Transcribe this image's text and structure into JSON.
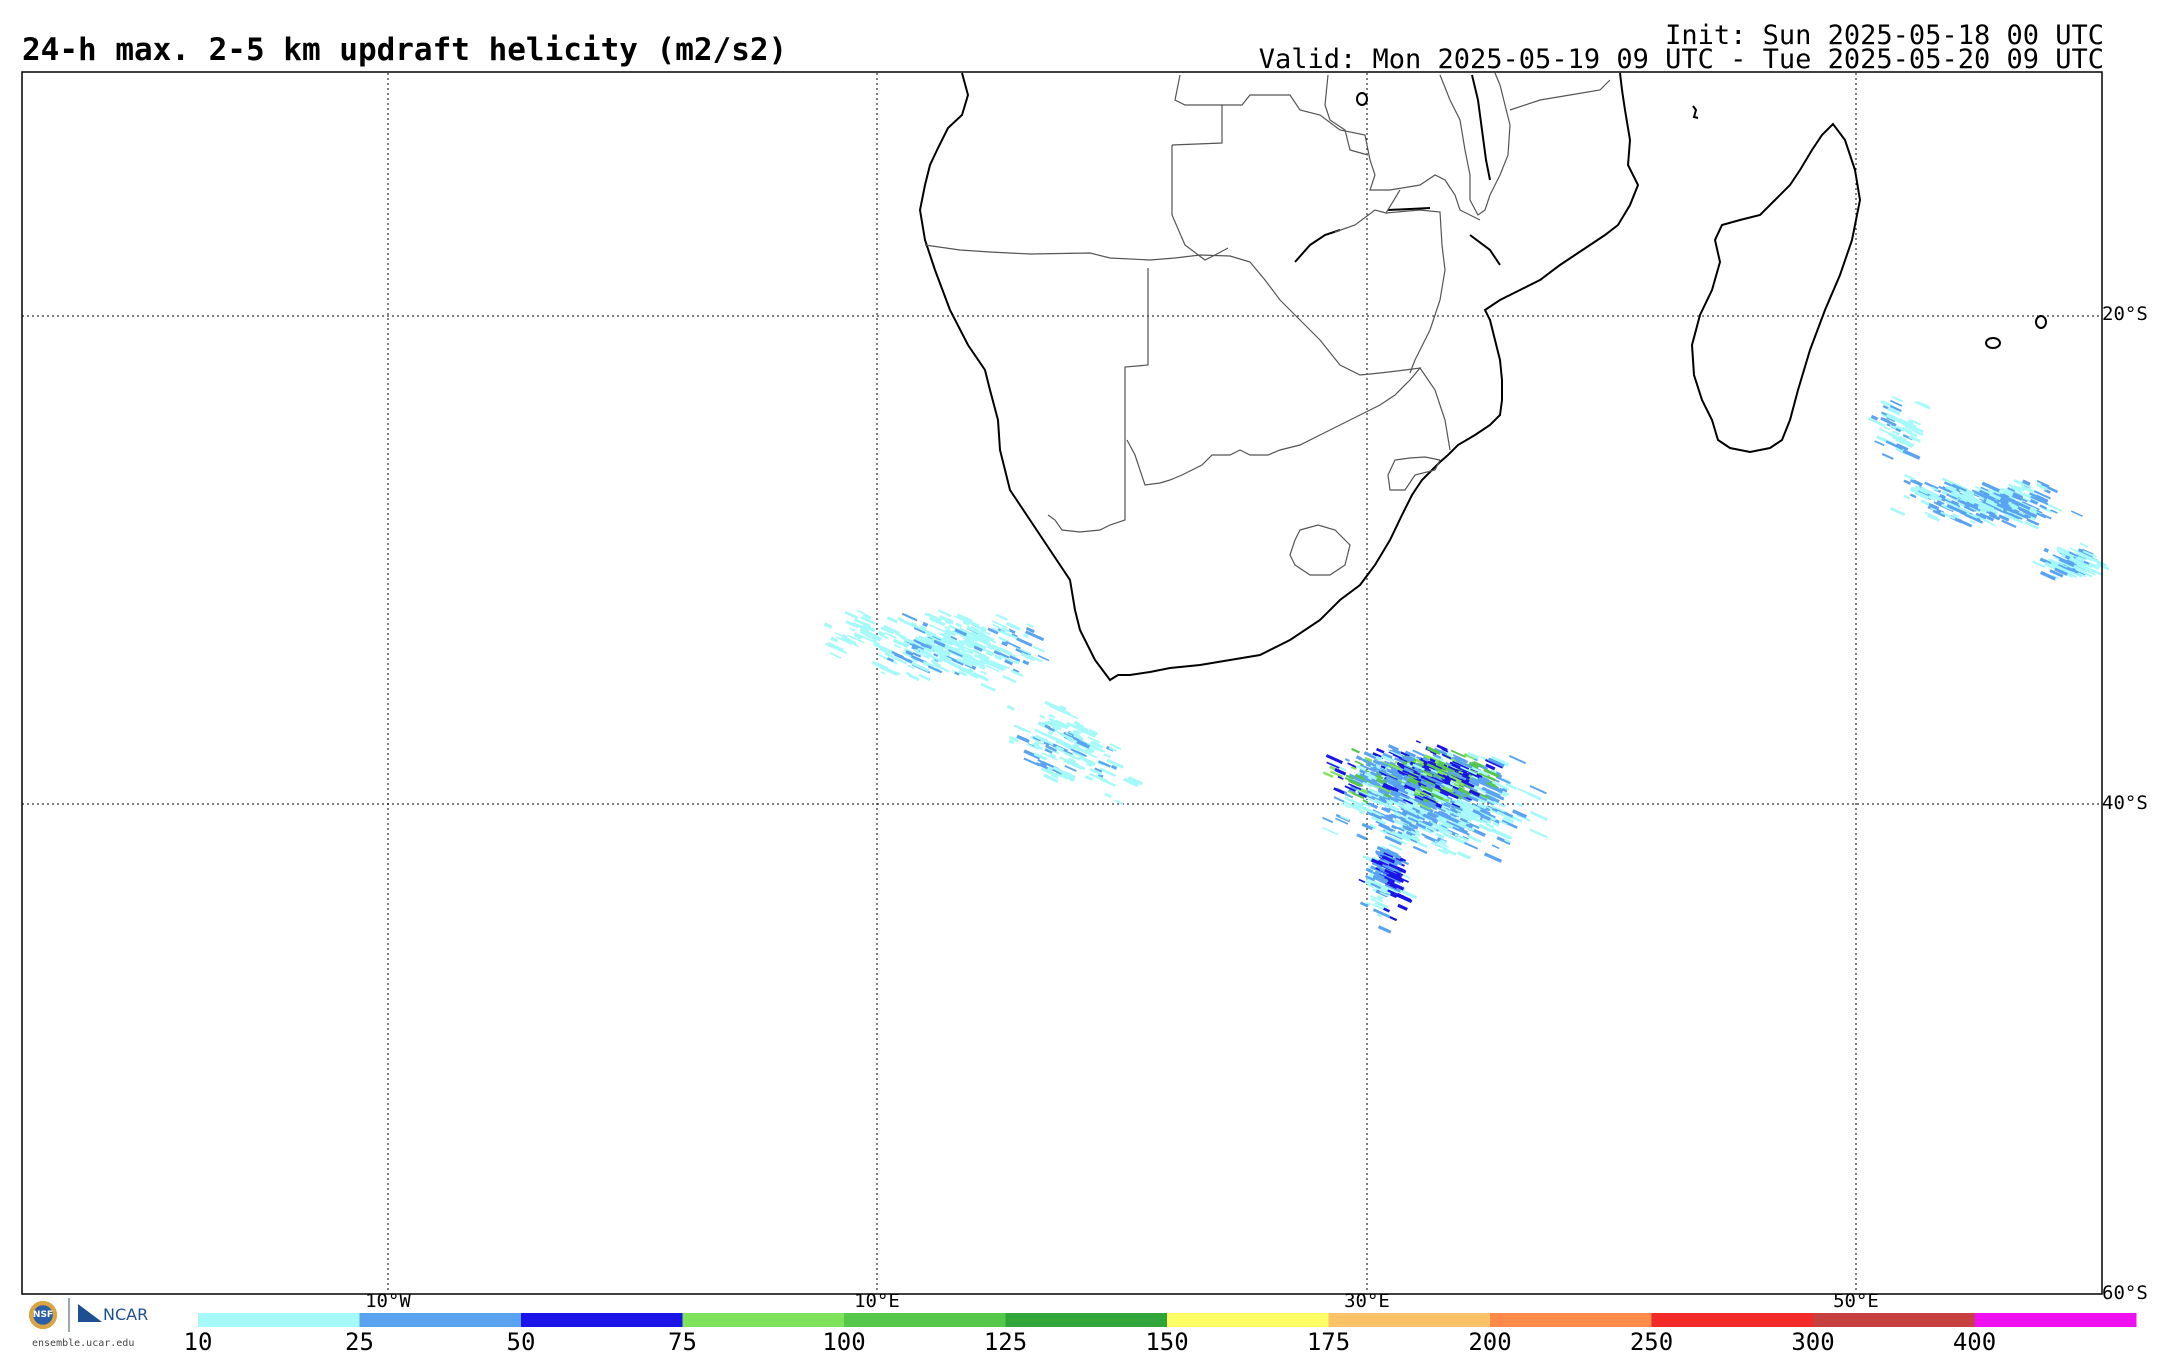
{
  "header": {
    "title": "24-h max. 2-5 km updraft helicity (m2/s2)",
    "init": "Init: Sun 2025-05-18 00 UTC",
    "valid": "Valid: Mon 2025-05-19 09 UTC - Tue 2025-05-20 09 UTC"
  },
  "map": {
    "projection": "cylindrical equidistant",
    "lon_range": [
      -25,
      60
    ],
    "lat_range": [
      -10,
      -60
    ],
    "gridlines_lon": [
      -10,
      10,
      30,
      50
    ],
    "gridlines_lat": [
      -20,
      -40
    ],
    "lon_labels": [
      "10°W",
      "10°E",
      "30°E",
      "50°E"
    ],
    "lat_labels": [
      "20°S",
      "40°S",
      "60°S"
    ],
    "coastline_color": "#000000",
    "border_color": "#555555",
    "regions": [
      {
        "name": "western-cape-scattered",
        "center_lon": 14.5,
        "center_lat": -35.0,
        "max_class": 50
      },
      {
        "name": "southern-ocean-core",
        "center_lon": 32.0,
        "center_lat": -39.5,
        "max_class": 125
      },
      {
        "name": "southeast-madagascar-band",
        "center_lon": 54.0,
        "center_lat": -28.0,
        "max_class": 50
      }
    ]
  },
  "colorbar": {
    "labels": [
      "10",
      "25",
      "50",
      "75",
      "100",
      "125",
      "150",
      "175",
      "200",
      "250",
      "300",
      "400"
    ],
    "colors": [
      "#a6f9f9",
      "#5aa3f0",
      "#1a14e8",
      "#7ee35a",
      "#55c74a",
      "#2fa53a",
      "#ffff66",
      "#ffc266",
      "#ff8a4a",
      "#f22a2a",
      "#c83f3f",
      "#ee10ee"
    ]
  },
  "logo": {
    "nsf": "NSF",
    "ncar": "NCAR",
    "url": "ensemble.ucar.edu"
  }
}
